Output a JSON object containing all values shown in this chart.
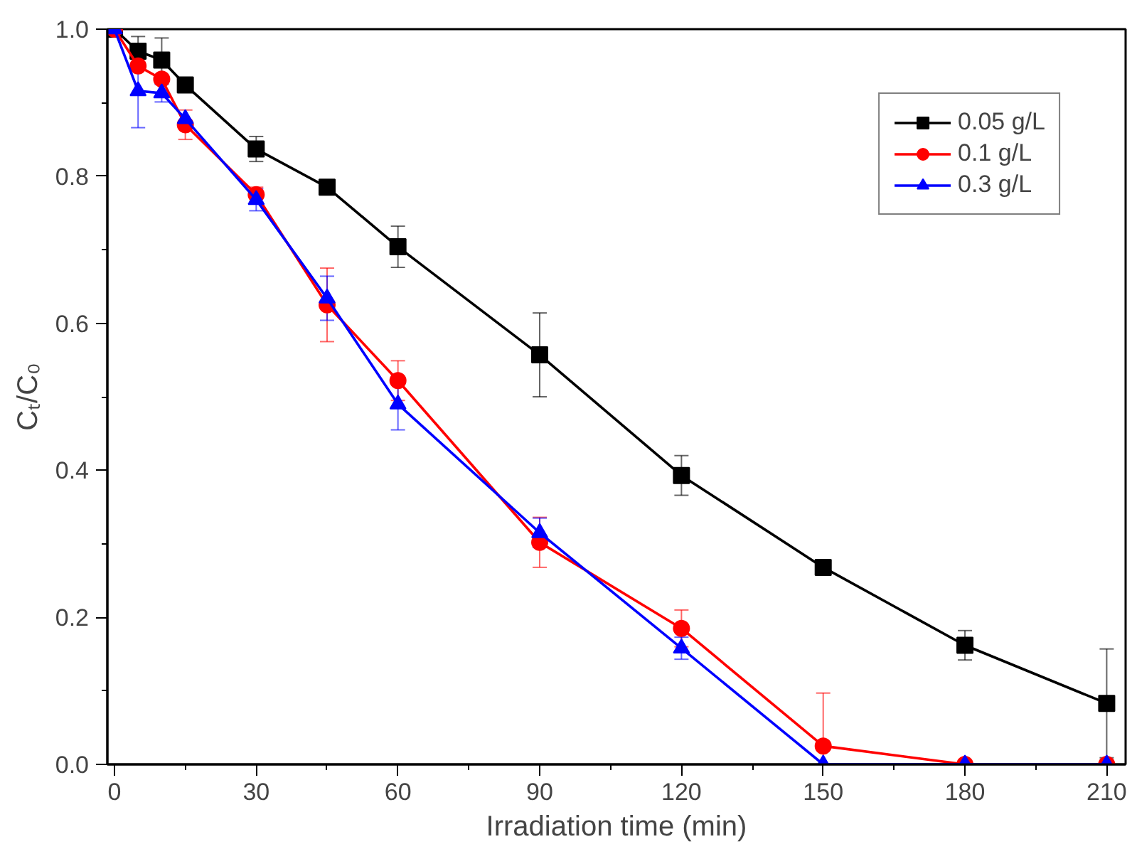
{
  "chart_data": {
    "type": "line",
    "xlabel": "Irradiation time (min)",
    "ylabel": "Cₜ/C₀",
    "x": [
      0,
      5,
      10,
      15,
      30,
      45,
      60,
      90,
      120,
      150,
      180,
      210
    ],
    "xlim": [
      -1.5,
      214
    ],
    "ylim": [
      0,
      1.0
    ],
    "xticks": [
      0,
      30,
      60,
      90,
      120,
      150,
      180,
      210
    ],
    "yticks": [
      {
        "value": 0,
        "label": "0.0"
      },
      0.2,
      0.4,
      0.6,
      0.8,
      {
        "value": 1.0,
        "label": "1.0"
      }
    ],
    "grid": false,
    "legend": "top right",
    "line_style": "solid",
    "series": [
      {
        "name": "0.05 g/L",
        "color": "#000000",
        "marker": "square",
        "values": [
          1.0,
          0.97,
          0.958,
          0.924,
          0.837,
          0.785,
          0.704,
          0.557,
          0.393,
          0.268,
          0.162,
          0.083
        ],
        "errors": [
          null,
          0.02,
          0.03,
          null,
          0.017,
          0.01,
          0.028,
          0.057,
          0.027,
          null,
          0.02,
          0.074
        ]
      },
      {
        "name": "0.1 g/L",
        "color": "#ff0000",
        "marker": "circle",
        "values": [
          1.0,
          0.95,
          0.932,
          0.87,
          0.775,
          0.625,
          0.522,
          0.302,
          0.185,
          0.025,
          0,
          0
        ],
        "errors": [
          null,
          null,
          null,
          0.02,
          0.01,
          0.05,
          0.027,
          0.034,
          0.025,
          [
            0,
            0.097
          ],
          null,
          null
        ]
      },
      {
        "name": "0.3 g/L",
        "color": "#0000ff",
        "marker": "triangle",
        "values": [
          1.0,
          0.916,
          0.913,
          0.878,
          0.768,
          0.634,
          0.49,
          0.315,
          0.158,
          0,
          0,
          0
        ],
        "errors": [
          null,
          0.05,
          0.012,
          null,
          0.015,
          0.03,
          0.035,
          0.02,
          0.015,
          null,
          null,
          null
        ]
      }
    ]
  }
}
